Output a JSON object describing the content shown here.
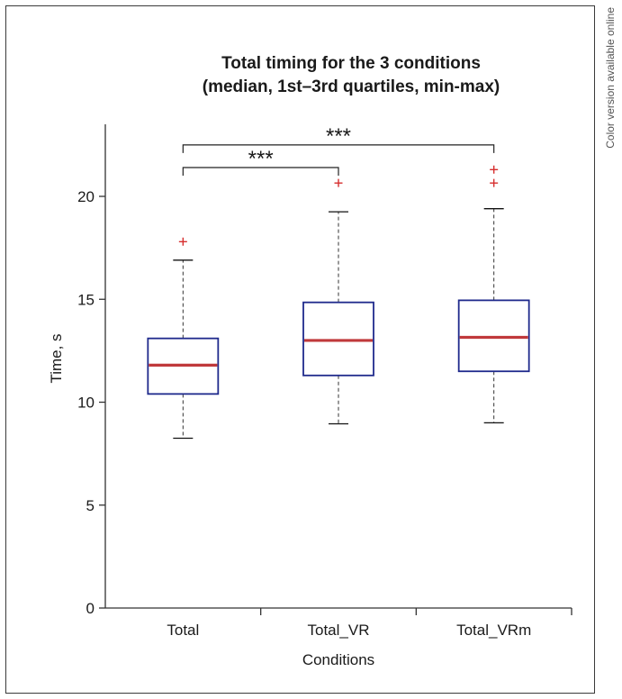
{
  "side_note": "Color version available online",
  "chart_data": {
    "type": "box",
    "title_lines": [
      "Total timing for the 3 conditions",
      "(median, 1st–3rd quartiles, min-max)"
    ],
    "xlabel": "Conditions",
    "ylabel": "Time, s",
    "ylim": [
      0,
      23.5
    ],
    "yticks": [
      0,
      5,
      10,
      15,
      20
    ],
    "categories": [
      "Total",
      "Total_VR",
      "Total_VRm"
    ],
    "boxes": [
      {
        "name": "Total",
        "min": 8.25,
        "q1": 10.4,
        "median": 11.8,
        "q3": 13.1,
        "max": 16.9,
        "outliers": [
          17.8
        ]
      },
      {
        "name": "Total_VR",
        "min": 8.95,
        "q1": 11.3,
        "median": 13.0,
        "q3": 14.85,
        "max": 19.25,
        "outliers": [
          20.65
        ]
      },
      {
        "name": "Total_VRm",
        "min": 9.0,
        "q1": 11.5,
        "median": 13.15,
        "q3": 14.95,
        "max": 19.4,
        "outliers": [
          20.65,
          21.3
        ]
      }
    ],
    "significance": [
      {
        "from": 0,
        "to": 1,
        "label": "***",
        "level": 21.4
      },
      {
        "from": 0,
        "to": 2,
        "label": "***",
        "level": 22.5
      }
    ],
    "colors": {
      "box": "#1f2a8c",
      "median": "#c0393b",
      "outlier": "#d62d2d",
      "whisker": "#333333",
      "axis": "#333333"
    }
  }
}
